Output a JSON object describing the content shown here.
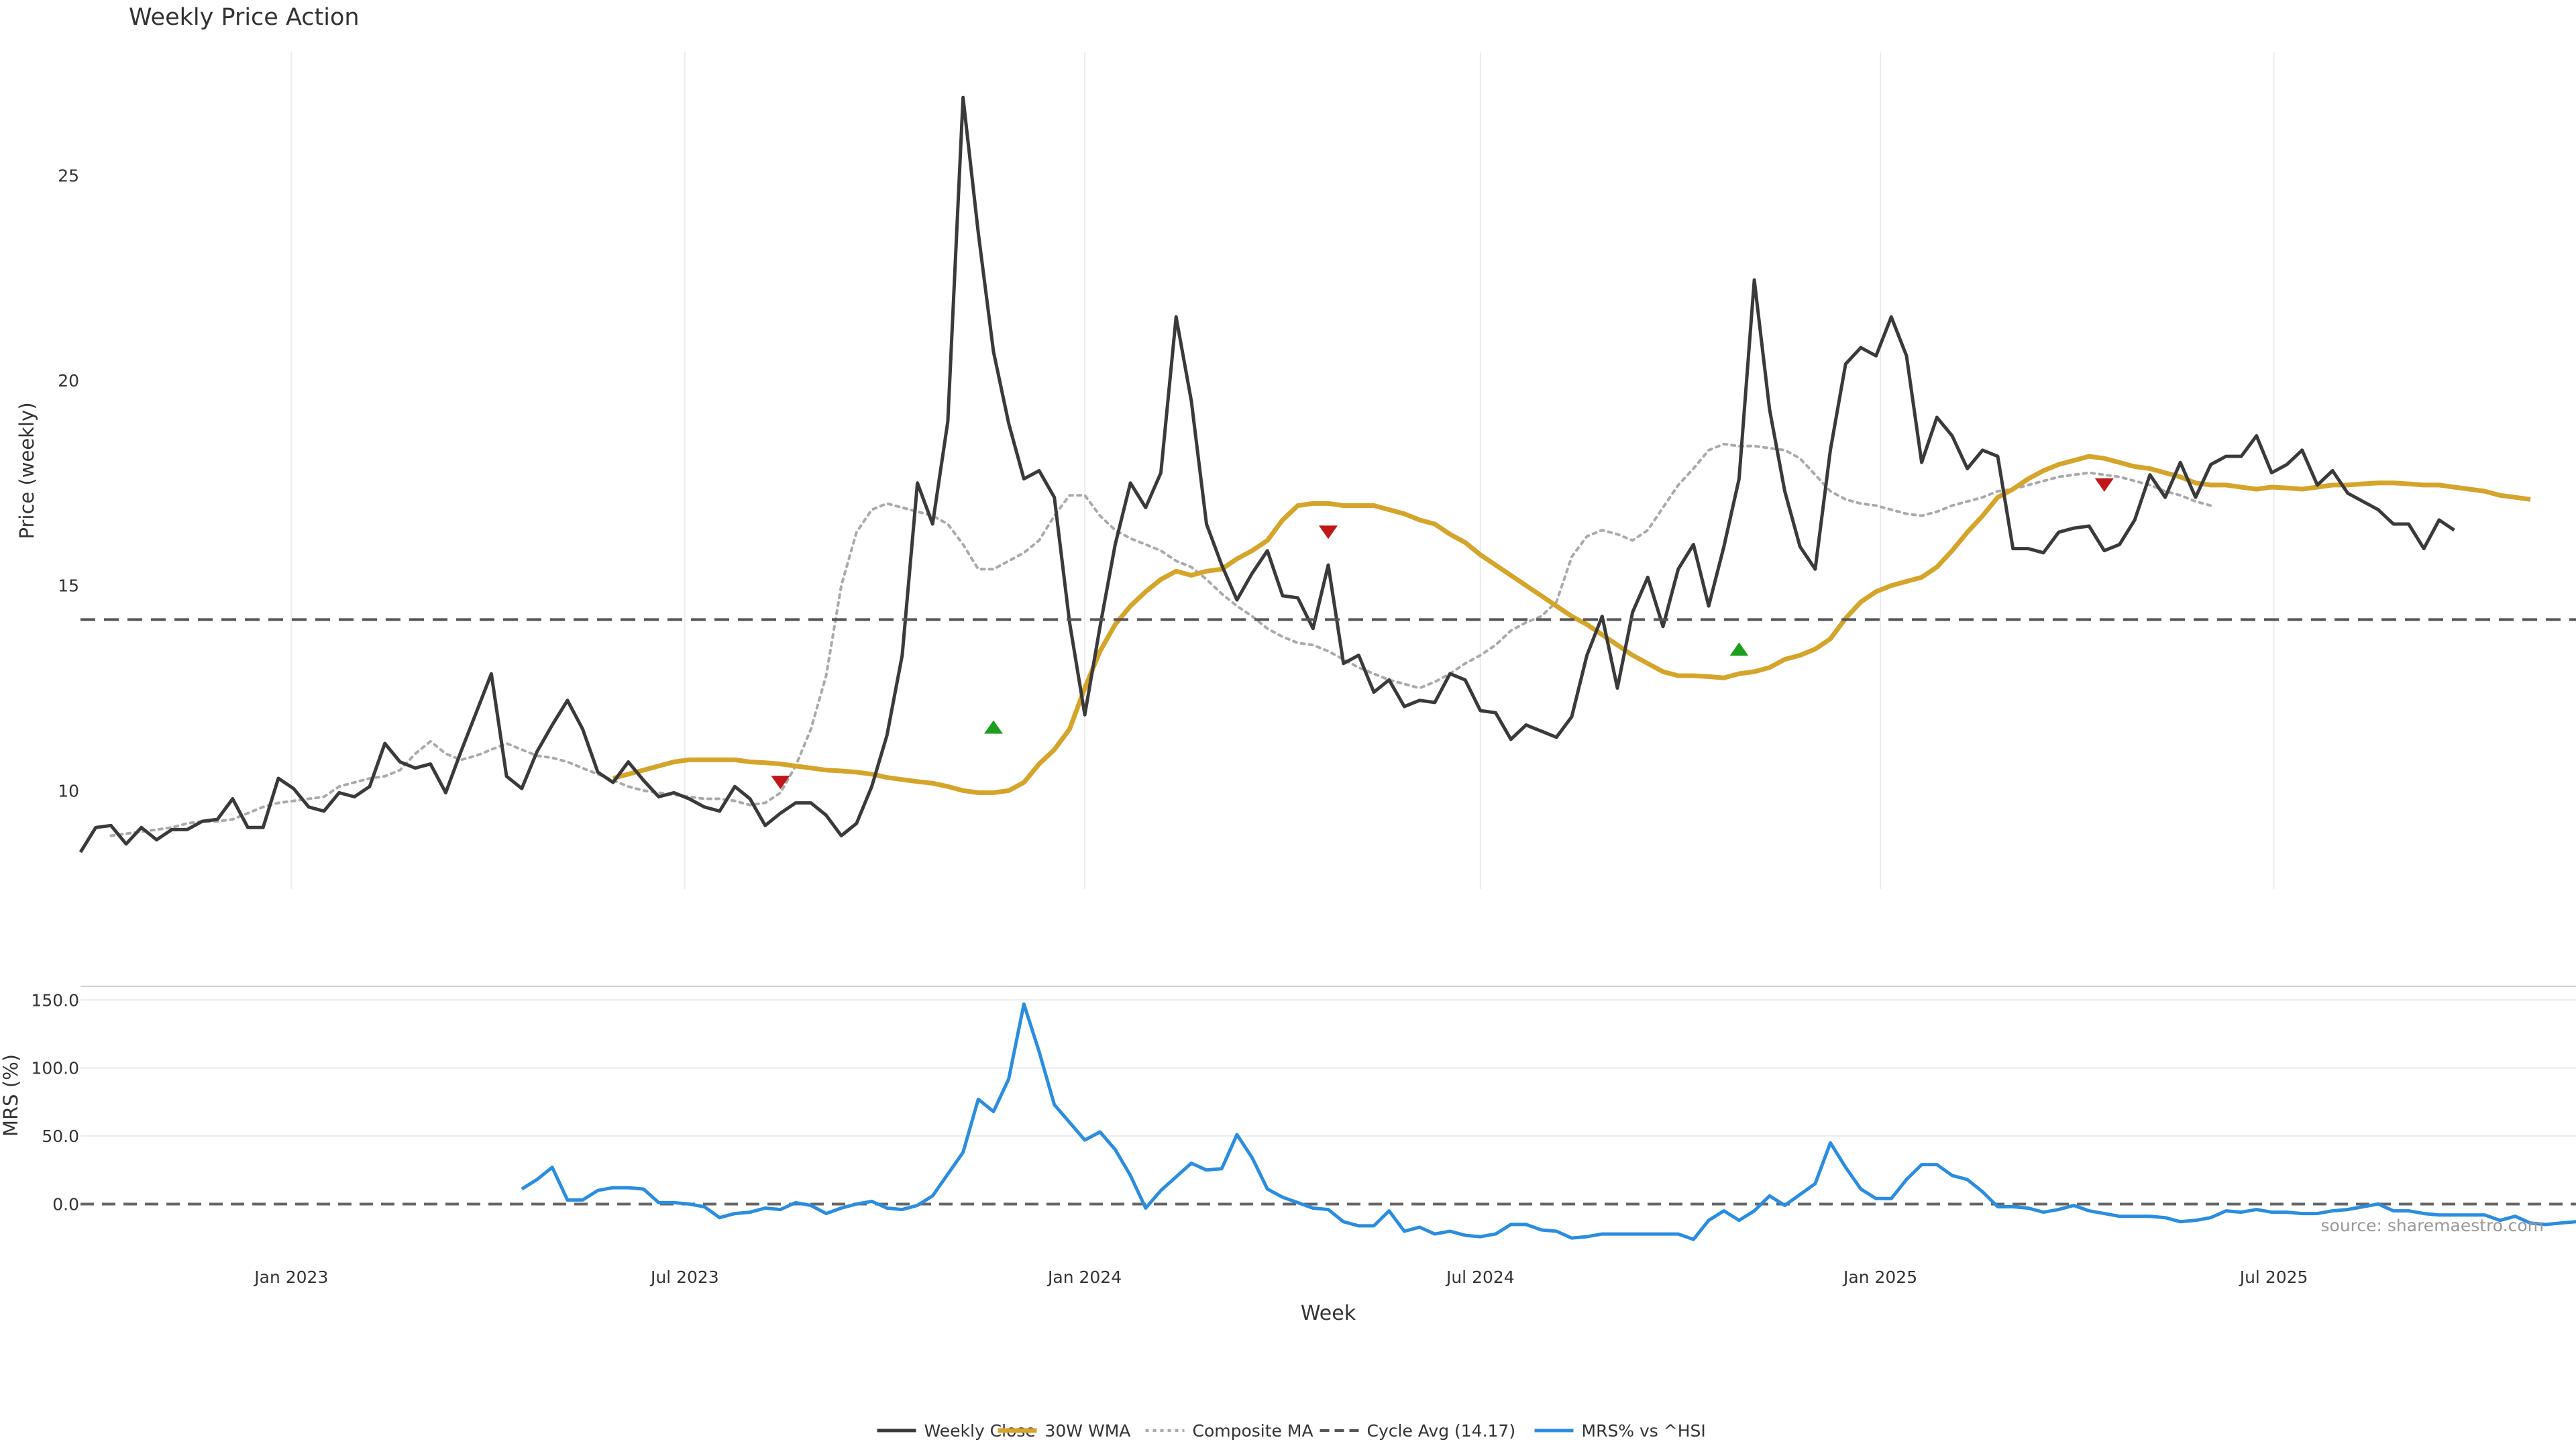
{
  "title": "Weekly Price Action",
  "source_note": "source: sharemaestro.com",
  "colors": {
    "close": "#3a3a3a",
    "wma": "#d4a52a",
    "composite": "#aaaaaa",
    "cycle": "#555555",
    "mrs": "#2a8de0",
    "signal_up": "#1e9e1e",
    "signal_down": "#c01818",
    "grid": "#ececec"
  },
  "chart_data": [
    {
      "type": "line",
      "ylabel": "Price (weekly)",
      "xlabel": "Week",
      "ylim": [
        7.6,
        28.0
      ],
      "yticks": [
        10,
        15,
        20,
        25
      ],
      "xlim": [
        "2022-09-26",
        "2025-11-17"
      ],
      "xticks": [
        {
          "date": "2023-01-01",
          "label": "Jan 2023"
        },
        {
          "date": "2023-07-01",
          "label": "Jul 2023"
        },
        {
          "date": "2024-01-01",
          "label": "Jan 2024"
        },
        {
          "date": "2024-07-01",
          "label": "Jul 2024"
        },
        {
          "date": "2025-01-01",
          "label": "Jan 2025"
        },
        {
          "date": "2025-07-01",
          "label": "Jul 2025"
        }
      ],
      "cycle_avg": 14.17,
      "series": [
        {
          "name": "Weekly Close",
          "style": "solid",
          "start": "2022-09-26",
          "values": [
            8.5,
            9.1,
            9.15,
            8.7,
            9.1,
            8.8,
            9.05,
            9.05,
            9.25,
            9.3,
            9.8,
            9.1,
            9.1,
            10.3,
            10.05,
            9.6,
            9.5,
            9.95,
            9.85,
            10.1,
            11.15,
            10.7,
            10.55,
            10.65,
            9.95,
            10.95,
            11.9,
            12.85,
            10.35,
            10.05,
            10.95,
            11.6,
            12.2,
            11.5,
            10.45,
            10.2,
            10.7,
            10.25,
            9.85,
            9.95,
            9.8,
            9.6,
            9.5,
            10.1,
            9.8,
            9.15,
            9.45,
            9.7,
            9.7,
            9.4,
            8.9,
            9.2,
            10.1,
            11.35,
            13.3,
            17.5,
            16.5,
            19.0,
            26.9,
            23.6,
            20.7,
            18.95,
            17.6,
            17.8,
            17.15,
            14.1,
            11.85,
            14.0,
            16.0,
            17.5,
            16.9,
            17.75,
            21.55,
            19.5,
            16.5,
            15.5,
            14.65,
            15.3,
            15.85,
            14.75,
            14.7,
            13.95,
            15.5,
            13.1,
            13.3,
            12.4,
            12.7,
            12.05,
            12.2,
            12.15,
            12.85,
            12.7,
            11.95,
            11.9,
            11.25,
            11.6,
            11.45,
            11.3,
            11.8,
            13.3,
            14.25,
            12.5,
            14.35,
            15.2,
            14.0,
            15.4,
            16.0,
            14.5,
            15.95,
            17.6,
            22.45,
            19.3,
            17.3,
            15.95,
            15.4,
            18.3,
            20.4,
            20.8,
            20.6,
            21.55,
            20.6,
            18.0,
            19.1,
            18.65,
            17.85,
            18.3,
            18.15,
            15.9,
            15.9,
            15.8,
            16.3,
            16.4,
            16.45,
            15.85,
            16.0,
            16.6,
            17.7,
            17.15,
            18.0,
            17.15,
            17.95,
            18.15,
            18.15,
            18.65,
            17.75,
            17.95,
            18.3,
            17.45,
            17.8,
            17.25,
            17.05,
            16.85,
            16.5,
            16.5,
            15.9,
            16.6,
            16.35
          ]
        },
        {
          "name": "30W WMA",
          "style": "bold",
          "start": "2023-05-29",
          "values": [
            10.3,
            10.4,
            10.5,
            10.6,
            10.7,
            10.75,
            10.75,
            10.75,
            10.75,
            10.7,
            10.68,
            10.65,
            10.6,
            10.55,
            10.5,
            10.48,
            10.45,
            10.4,
            10.32,
            10.27,
            10.22,
            10.18,
            10.1,
            10.0,
            9.95,
            9.95,
            10.0,
            10.2,
            10.65,
            11.0,
            11.5,
            12.5,
            13.4,
            14.05,
            14.5,
            14.85,
            15.15,
            15.35,
            15.25,
            15.35,
            15.4,
            15.65,
            15.85,
            16.1,
            16.6,
            16.95,
            17.0,
            17.0,
            16.95,
            16.95,
            16.95,
            16.85,
            16.75,
            16.6,
            16.5,
            16.25,
            16.05,
            15.75,
            15.5,
            15.25,
            15.0,
            14.75,
            14.5,
            14.25,
            14.05,
            13.8,
            13.55,
            13.3,
            13.1,
            12.9,
            12.8,
            12.8,
            12.78,
            12.75,
            12.85,
            12.9,
            13.0,
            13.2,
            13.3,
            13.45,
            13.7,
            14.2,
            14.6,
            14.85,
            15.0,
            15.1,
            15.2,
            15.45,
            15.85,
            16.3,
            16.7,
            17.15,
            17.35,
            17.6,
            17.8,
            17.95,
            18.05,
            18.15,
            18.1,
            18.0,
            17.9,
            17.85,
            17.75,
            17.65,
            17.5,
            17.45,
            17.45,
            17.4,
            17.35,
            17.4,
            17.38,
            17.35,
            17.4,
            17.45,
            17.45,
            17.48,
            17.5,
            17.5,
            17.48,
            17.45,
            17.45,
            17.4,
            17.35,
            17.3,
            17.2,
            17.15,
            17.1
          ]
        },
        {
          "name": "Composite MA",
          "style": "dotted",
          "start": "2022-10-10",
          "values": [
            8.9,
            8.95,
            9.0,
            9.05,
            9.1,
            9.2,
            9.25,
            9.25,
            9.3,
            9.45,
            9.6,
            9.7,
            9.75,
            9.8,
            9.85,
            10.1,
            10.2,
            10.3,
            10.35,
            10.5,
            10.9,
            11.2,
            10.9,
            10.75,
            10.85,
            11.0,
            11.15,
            11.0,
            10.85,
            10.8,
            10.7,
            10.55,
            10.4,
            10.25,
            10.1,
            10.0,
            9.95,
            9.9,
            9.85,
            9.8,
            9.8,
            9.75,
            9.65,
            9.7,
            9.95,
            10.6,
            11.5,
            12.8,
            15.0,
            16.3,
            16.85,
            17.0,
            16.9,
            16.8,
            16.7,
            16.5,
            16.0,
            15.4,
            15.4,
            15.6,
            15.8,
            16.1,
            16.7,
            17.2,
            17.2,
            16.7,
            16.35,
            16.15,
            16.0,
            15.85,
            15.6,
            15.45,
            15.15,
            14.8,
            14.5,
            14.25,
            13.95,
            13.75,
            13.6,
            13.55,
            13.4,
            13.2,
            13.0,
            12.85,
            12.7,
            12.6,
            12.5,
            12.65,
            12.85,
            13.1,
            13.3,
            13.55,
            13.9,
            14.1,
            14.25,
            14.6,
            15.7,
            16.2,
            16.35,
            16.25,
            16.1,
            16.35,
            16.9,
            17.45,
            17.85,
            18.3,
            18.45,
            18.4,
            18.4,
            18.35,
            18.3,
            18.1,
            17.7,
            17.3,
            17.1,
            17.0,
            16.95,
            16.85,
            16.75,
            16.7,
            16.8,
            16.95,
            17.05,
            17.15,
            17.3,
            17.35,
            17.45,
            17.55,
            17.65,
            17.7,
            17.75,
            17.7,
            17.65,
            17.55,
            17.45,
            17.3,
            17.2,
            17.05,
            16.95
          ]
        },
        {
          "name": "Cycle Avg (14.17)",
          "style": "dashed",
          "constant": 14.17
        }
      ],
      "markers": [
        {
          "date": "2023-08-14",
          "value": 10.2,
          "dir": "down"
        },
        {
          "date": "2023-11-20",
          "value": 11.55,
          "dir": "up"
        },
        {
          "date": "2024-04-22",
          "value": 16.3,
          "dir": "down"
        },
        {
          "date": "2024-10-28",
          "value": 13.45,
          "dir": "up"
        },
        {
          "date": "2025-04-14",
          "value": 17.45,
          "dir": "down"
        }
      ]
    },
    {
      "type": "line",
      "ylabel": "MRS (%)",
      "ylim": [
        -20,
        160
      ],
      "yticks": [
        {
          "value": 0,
          "label": "0.0"
        },
        {
          "value": 50,
          "label": "50.0"
        },
        {
          "value": 100,
          "label": "100.0"
        },
        {
          "value": 150,
          "label": "150.0"
        }
      ],
      "zero_line": 0,
      "series": [
        {
          "name": "MRS% vs ^HSI",
          "style": "solid",
          "start": "2023-04-17",
          "values": [
            11,
            18,
            27,
            3,
            3,
            10,
            12,
            12,
            11,
            1,
            1,
            0,
            -2,
            -10,
            -7,
            -6,
            -3,
            -4,
            1,
            -1,
            -7,
            -3,
            0,
            2,
            -3,
            -4,
            -1,
            6,
            22,
            38,
            77,
            68,
            92,
            147,
            112,
            73,
            60,
            47,
            53,
            40,
            21,
            -3,
            10,
            20,
            30,
            25,
            26,
            51,
            34,
            11,
            5,
            1,
            -3,
            -4,
            -13,
            -16,
            -16,
            -5,
            -20,
            -17,
            -22,
            -20,
            -23,
            -24,
            -22,
            -15,
            -15,
            -19,
            -20,
            -25,
            -24,
            -22,
            -22,
            -22,
            -22,
            -22,
            -22,
            -26,
            -12,
            -5,
            -12,
            -5,
            6,
            -1,
            7,
            15,
            45,
            27,
            11,
            4,
            4,
            18,
            29,
            29,
            21,
            18,
            9,
            -2,
            -2,
            -3,
            -6,
            -4,
            -1,
            -5,
            -7,
            -9,
            -9,
            -9,
            -10,
            -13,
            -12,
            -10,
            -5,
            -6,
            -4,
            -6,
            -6,
            -7,
            -7,
            -5,
            -4,
            -2,
            0,
            -5,
            -5,
            -7,
            -8,
            -8,
            -8,
            -8,
            -12,
            -9,
            -14,
            -15,
            -14,
            -13
          ]
        }
      ]
    }
  ],
  "legend": {
    "position": "bottom-center",
    "items": [
      {
        "label": "Weekly Close",
        "key": "close",
        "style": "solid"
      },
      {
        "label": "30W WMA",
        "key": "wma",
        "style": "bold"
      },
      {
        "label": "Composite MA",
        "key": "composite",
        "style": "dotted"
      },
      {
        "label": "Cycle Avg (14.17)",
        "key": "cycle",
        "style": "dashed"
      },
      {
        "label": "MRS% vs ^HSI",
        "key": "mrs",
        "style": "solid"
      }
    ]
  }
}
